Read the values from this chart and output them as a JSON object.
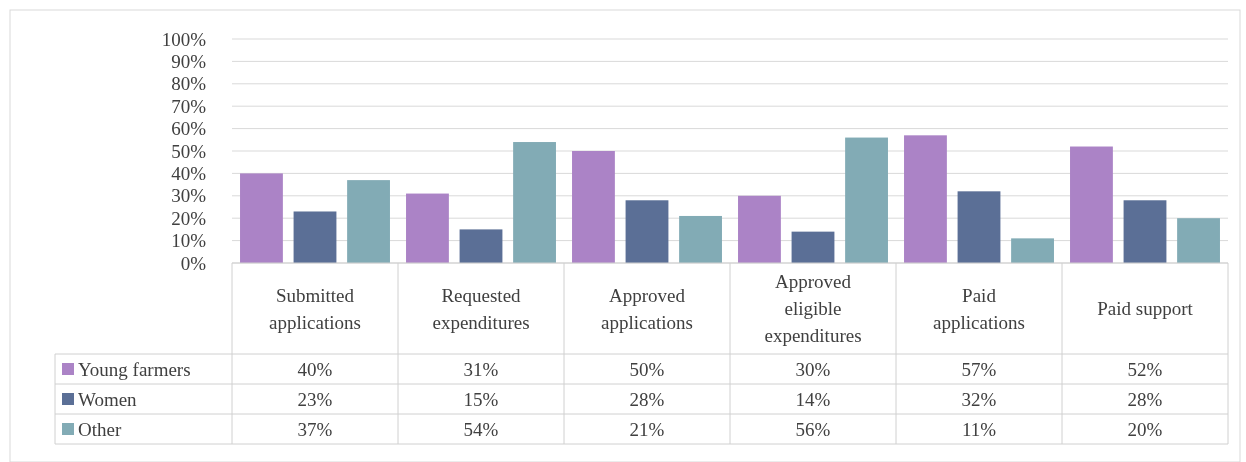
{
  "chart_data": {
    "type": "bar",
    "categories": [
      "Submitted applications",
      "Requested expenditures",
      "Approved applications",
      "Approved eligible expenditures",
      "Paid applications",
      "Paid support"
    ],
    "series": [
      {
        "name": "Young farmers",
        "color": "#ab83c6",
        "values": [
          40,
          31,
          50,
          30,
          57,
          52
        ],
        "value_labels": [
          "40%",
          "31%",
          "50%",
          "30%",
          "57%",
          "52%"
        ]
      },
      {
        "name": "Women",
        "color": "#5b6f96",
        "values": [
          23,
          15,
          28,
          14,
          32,
          28
        ],
        "value_labels": [
          "23%",
          "15%",
          "28%",
          "14%",
          "32%",
          "28%"
        ]
      },
      {
        "name": "Other",
        "color": "#82abb5",
        "values": [
          37,
          54,
          21,
          56,
          11,
          20
        ],
        "value_labels": [
          "37%",
          "54%",
          "21%",
          "56%",
          "11%",
          "20%"
        ]
      }
    ],
    "ylim": [
      0,
      100
    ],
    "yticks": [
      {
        "value": 0,
        "label": "0%"
      },
      {
        "value": 10,
        "label": "10%"
      },
      {
        "value": 20,
        "label": "20%"
      },
      {
        "value": 30,
        "label": "30%"
      },
      {
        "value": 40,
        "label": "40%"
      },
      {
        "value": 50,
        "label": "50%"
      },
      {
        "value": 60,
        "label": "60%"
      },
      {
        "value": 70,
        "label": "70%"
      },
      {
        "value": 80,
        "label": "80%"
      },
      {
        "value": 90,
        "label": "90%"
      },
      {
        "value": 100,
        "label": "100%"
      }
    ],
    "grid": "y",
    "legend": "bottom left"
  }
}
